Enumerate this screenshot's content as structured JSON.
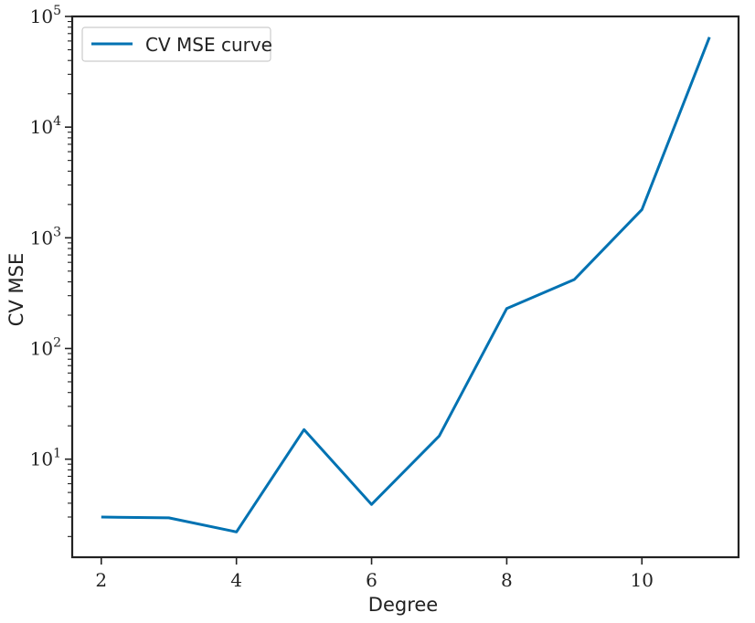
{
  "chart_data": {
    "type": "line",
    "xlabel": "Degree",
    "ylabel": "CV MSE",
    "yscale": "log",
    "xlim": [
      1.57,
      11.43
    ],
    "ylim": [
      1.3,
      100000
    ],
    "x_ticks": [
      "2",
      "4",
      "6",
      "8",
      "10"
    ],
    "x_tick_values": [
      2,
      4,
      6,
      8,
      10
    ],
    "y_ticks": [
      {
        "base": "10",
        "exp": "1",
        "value": 10
      },
      {
        "base": "10",
        "exp": "2",
        "value": 100
      },
      {
        "base": "10",
        "exp": "3",
        "value": 1000
      },
      {
        "base": "10",
        "exp": "4",
        "value": 10000
      },
      {
        "base": "10",
        "exp": "5",
        "value": 100000
      }
    ],
    "series": [
      {
        "name": "CV MSE curve",
        "color": "#0072b2",
        "x": [
          2,
          3,
          4,
          5,
          6,
          7,
          8,
          9,
          10,
          11
        ],
        "y": [
          3.0,
          2.95,
          2.2,
          18.5,
          3.9,
          16.2,
          230,
          420,
          1800,
          65000
        ]
      }
    ],
    "legend": {
      "position": "top-left",
      "entries": [
        "CV MSE curve"
      ]
    },
    "grid": false
  }
}
